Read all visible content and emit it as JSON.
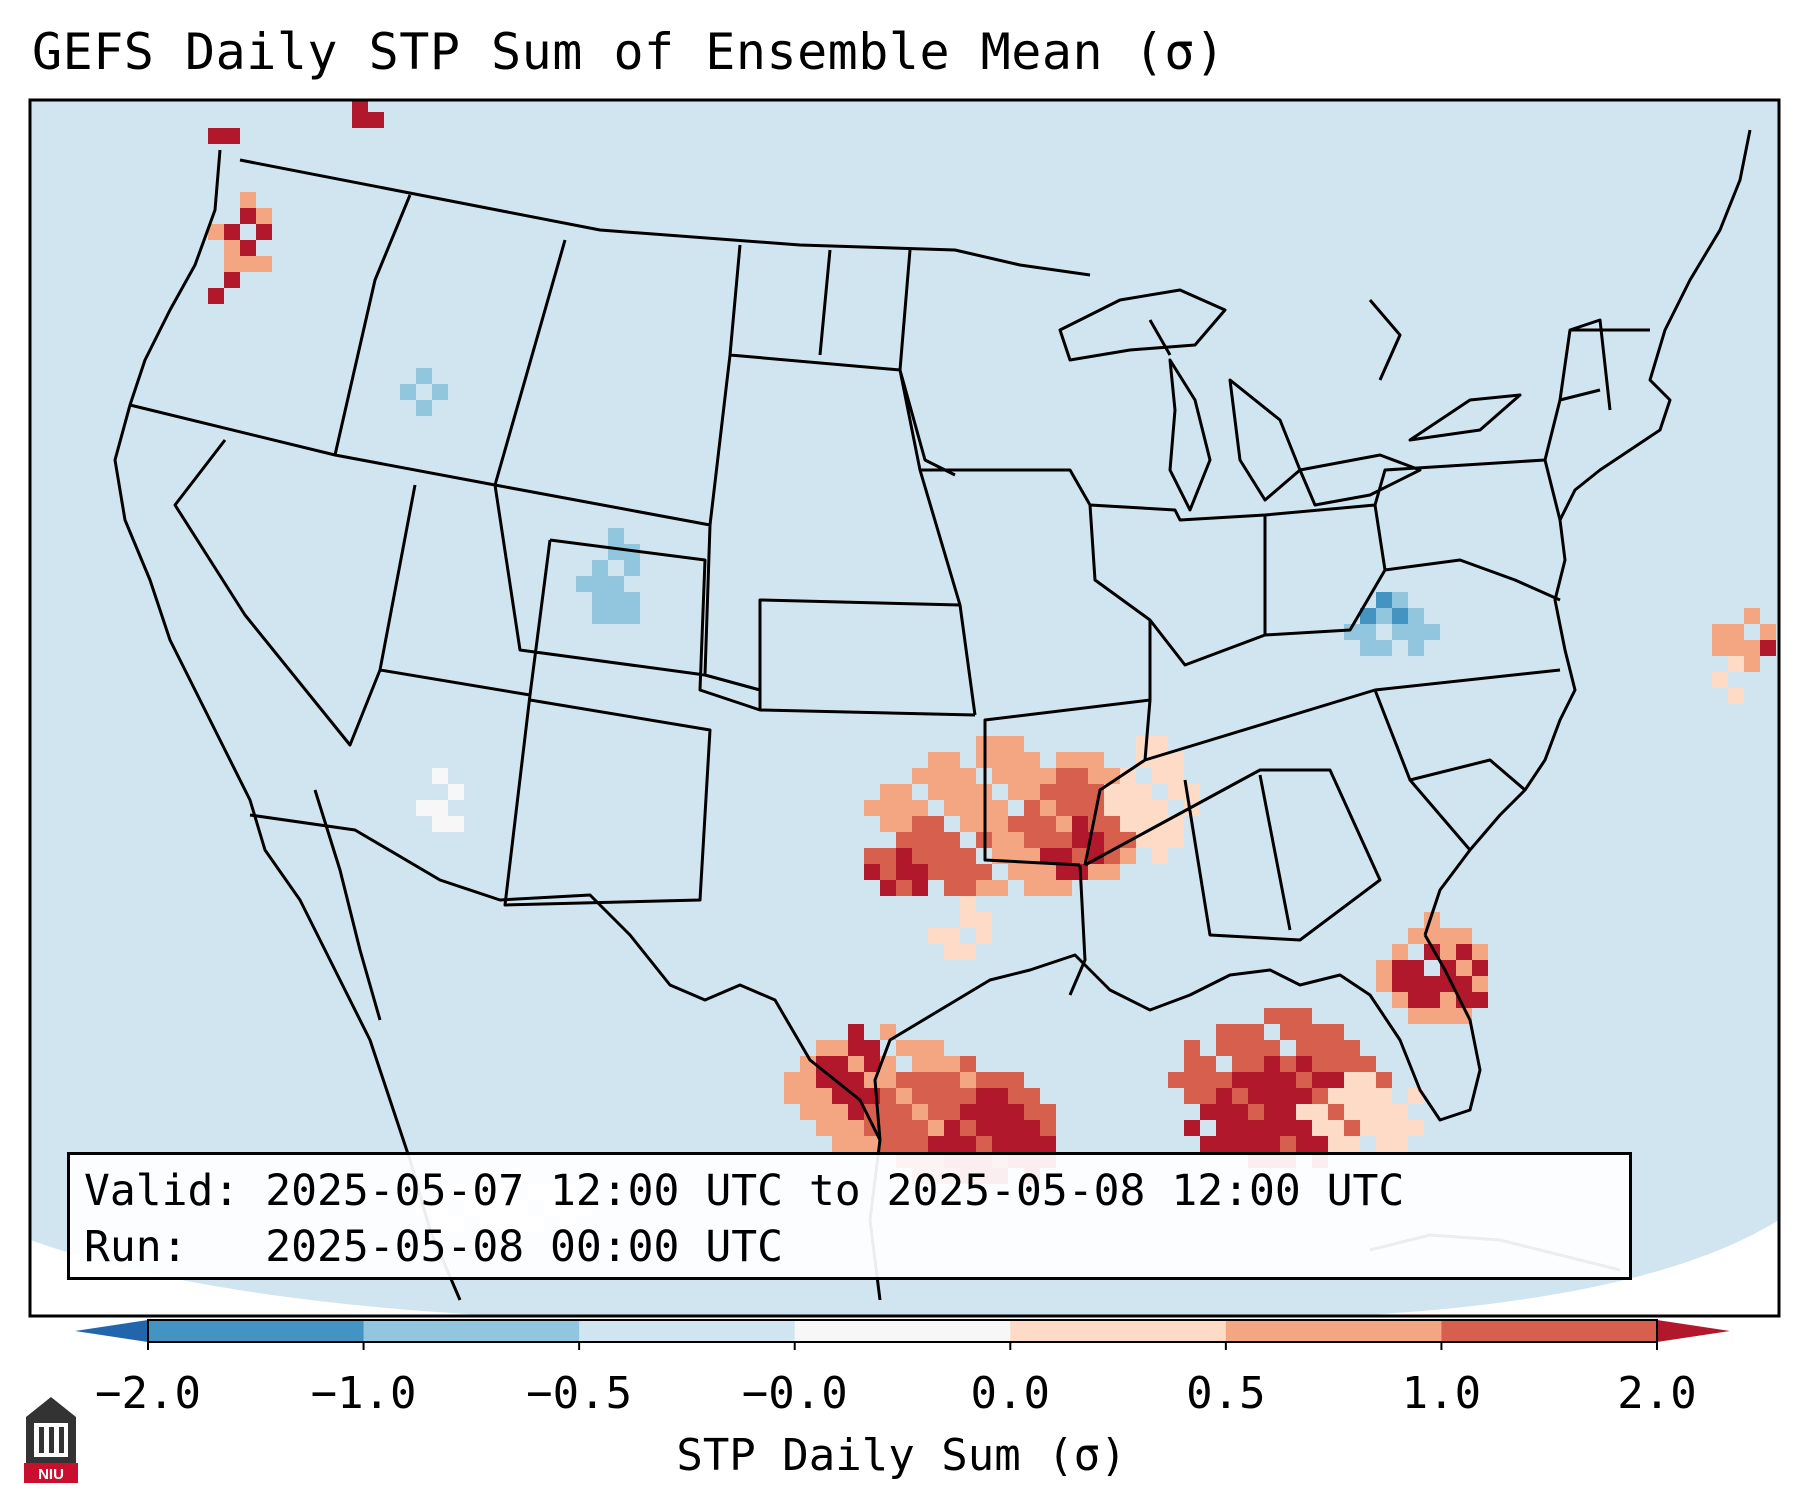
{
  "header": {
    "title": "GEFS Daily STP Sum of Ensemble Mean (σ)"
  },
  "info_box": {
    "valid_label": "Valid:",
    "valid_value": "2025-05-07 12:00 UTC to 2025-05-08 12:00 UTC",
    "run_label": "Run:  ",
    "run_value": "2025-05-08 00:00 UTC"
  },
  "colorbar": {
    "label": "STP Daily Sum (σ)",
    "ticks": [
      "−2.0",
      "−1.0",
      "−0.5",
      "−0.0",
      "0.0",
      "0.5",
      "1.0",
      "2.0"
    ],
    "colors": [
      "#4393c3",
      "#92c5de",
      "#d1e5f0",
      "#f7f7f7",
      "#fddbc7",
      "#f4a582",
      "#d6604d"
    ],
    "extend_min_color": "#2166ac",
    "extend_max_color": "#b2182b"
  },
  "map": {
    "background_color": "#d1e5f0",
    "outside_color": "#ffffff",
    "line_color": "#000000",
    "regions": [
      {
        "name": "Pacific Northwest",
        "level": 2.0
      },
      {
        "name": "Southern Plains",
        "level": 1.5
      },
      {
        "name": "Texas Gulf Coast",
        "level": 2.0
      },
      {
        "name": "Northern Gulf of Mexico",
        "level": 2.0
      },
      {
        "name": "Florida",
        "level": 2.0
      },
      {
        "name": "Western Atlantic",
        "level": 1.0
      },
      {
        "name": "Colorado Rockies",
        "level": -0.7
      },
      {
        "name": "Ohio Valley",
        "level": -0.7
      }
    ]
  },
  "logo": {
    "text": "NIU",
    "color": "#c8102e"
  }
}
